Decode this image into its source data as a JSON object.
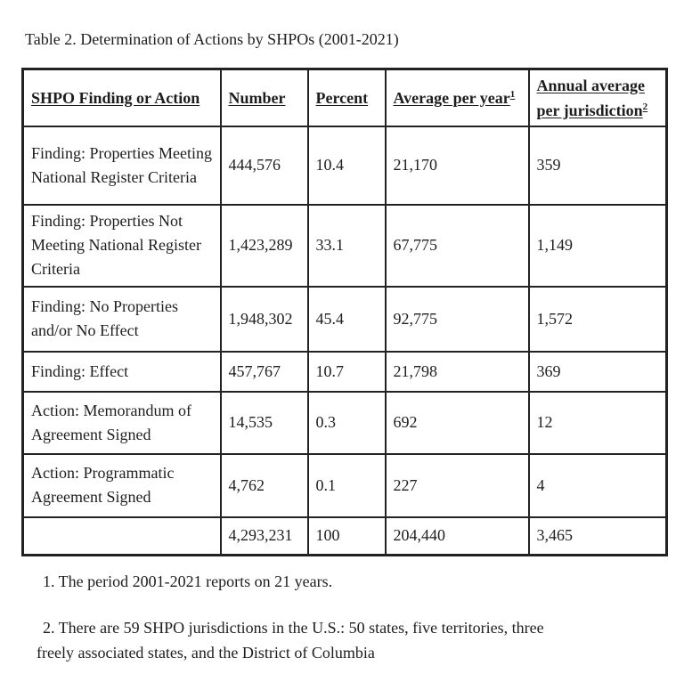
{
  "page": {
    "title": "Table 2. Determination of Actions by SHPOs (2001-2021)"
  },
  "table": {
    "columns": [
      {
        "label": "SHPO Finding or Action",
        "sup": ""
      },
      {
        "label": "Number",
        "sup": ""
      },
      {
        "label": "Percent",
        "sup": ""
      },
      {
        "label": "Average per year",
        "sup": "1"
      },
      {
        "label": "Annual average per jurisdiction",
        "sup": "2"
      }
    ],
    "rows": [
      {
        "label": "Finding: Properties Meeting National Register Criteria",
        "number": "444,576",
        "percent": "10.4",
        "average_per_year": "21,170",
        "annual_average_per_jurisdiction": "359"
      },
      {
        "label": "Finding: Properties Not Meeting National Register Criteria",
        "number": "1,423,289",
        "percent": "33.1",
        "average_per_year": "67,775",
        "annual_average_per_jurisdiction": "1,149"
      },
      {
        "label": "Finding: No Properties and/or No Effect",
        "number": "1,948,302",
        "percent": "45.4",
        "average_per_year": "92,775",
        "annual_average_per_jurisdiction": "1,572"
      },
      {
        "label": "Finding: Effect",
        "number": "457,767",
        "percent": "10.7",
        "average_per_year": "21,798",
        "annual_average_per_jurisdiction": "369"
      },
      {
        "label": "Action: Memorandum of Agreement Signed",
        "number": "14,535",
        "percent": "0.3",
        "average_per_year": "692",
        "annual_average_per_jurisdiction": "12"
      },
      {
        "label": "Action: Programmatic Agreement Signed",
        "number": "4,762",
        "percent": "0.1",
        "average_per_year": "227",
        "annual_average_per_jurisdiction": "4"
      }
    ],
    "total_row": {
      "label": "",
      "number": "4,293,231",
      "percent": "100",
      "average_per_year": "204,440",
      "annual_average_per_jurisdiction": "3,465"
    }
  },
  "footnotes": [
    "1. The period 2001-2021 reports on 21 years.",
    "2. There are 59 SHPO jurisdictions in the U.S.: 50 states, five territories, three freely associated states, and the District of Columbia"
  ]
}
